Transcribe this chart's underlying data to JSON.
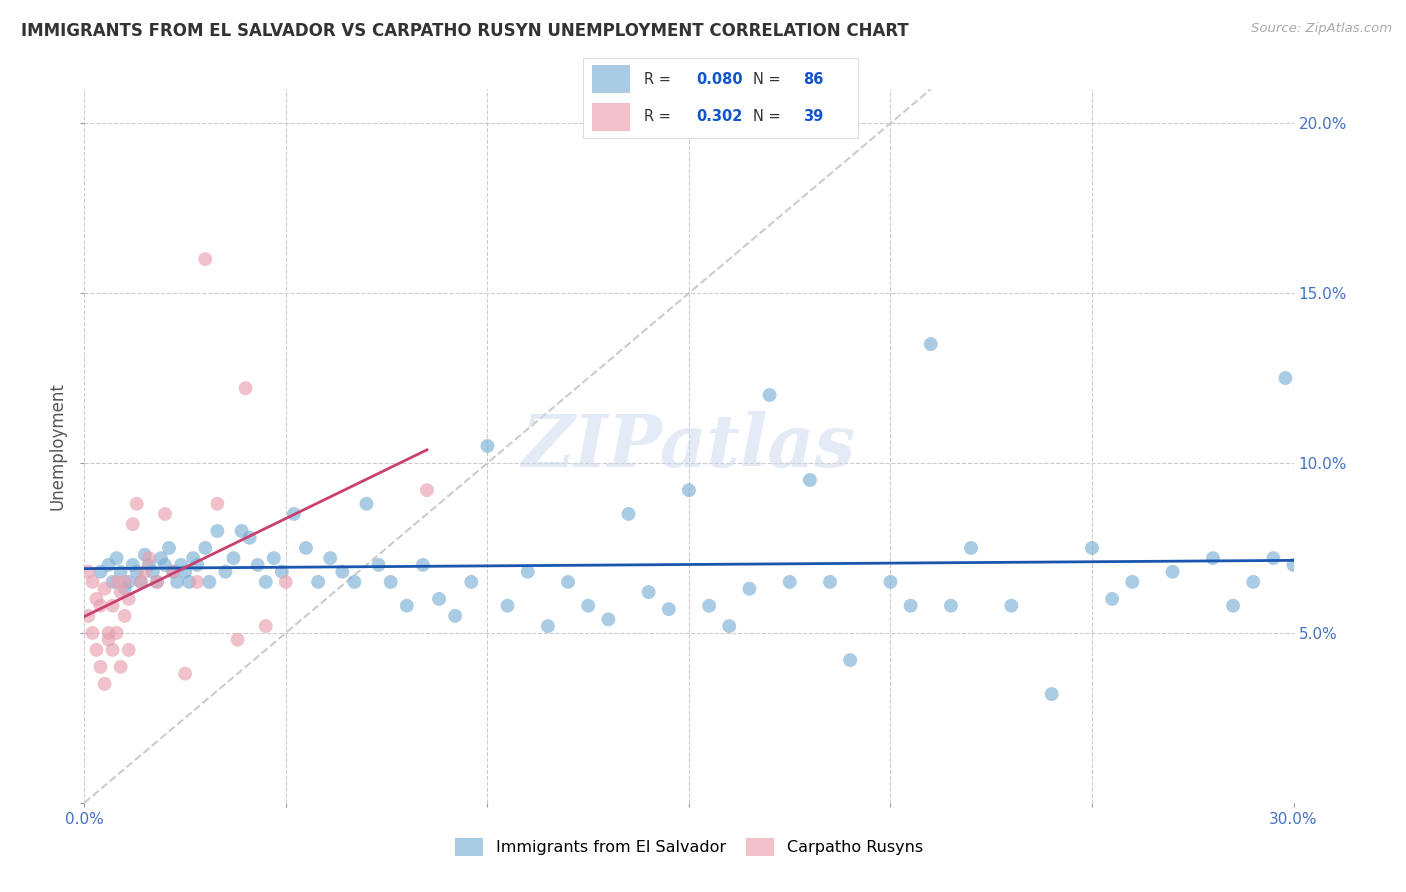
{
  "title": "IMMIGRANTS FROM EL SALVADOR VS CARPATHO RUSYN UNEMPLOYMENT CORRELATION CHART",
  "source": "Source: ZipAtlas.com",
  "ylabel": "Unemployment",
  "xlim": [
    0,
    0.3
  ],
  "ylim": [
    0,
    0.21
  ],
  "xticks": [
    0.0,
    0.05,
    0.1,
    0.15,
    0.2,
    0.25,
    0.3
  ],
  "xticklabels_sparse": [
    "0.0%",
    "",
    "",
    "",
    "",
    "",
    "30.0%"
  ],
  "yticks": [
    0.0,
    0.05,
    0.1,
    0.15,
    0.2
  ],
  "yticklabels_right": [
    "",
    "5.0%",
    "10.0%",
    "15.0%",
    "20.0%"
  ],
  "blue_color": "#7bafd4",
  "pink_color": "#e8a0b0",
  "blue_line_color": "#1a56b0",
  "pink_line_color": "#c94070",
  "legend_R_blue": "0.080",
  "legend_N_blue": "86",
  "legend_R_pink": "0.302",
  "legend_N_pink": "39",
  "watermark": "ZIPatlas",
  "background_color": "#ffffff",
  "grid_color": "#cccccc",
  "blue_x": [
    0.004,
    0.006,
    0.007,
    0.008,
    0.009,
    0.01,
    0.011,
    0.012,
    0.013,
    0.014,
    0.015,
    0.016,
    0.017,
    0.018,
    0.019,
    0.02,
    0.021,
    0.022,
    0.023,
    0.024,
    0.025,
    0.026,
    0.027,
    0.028,
    0.03,
    0.031,
    0.033,
    0.035,
    0.037,
    0.039,
    0.041,
    0.043,
    0.045,
    0.047,
    0.049,
    0.052,
    0.055,
    0.058,
    0.061,
    0.064,
    0.067,
    0.07,
    0.073,
    0.076,
    0.08,
    0.084,
    0.088,
    0.092,
    0.096,
    0.1,
    0.105,
    0.11,
    0.115,
    0.12,
    0.125,
    0.13,
    0.135,
    0.14,
    0.145,
    0.15,
    0.155,
    0.16,
    0.165,
    0.17,
    0.175,
    0.18,
    0.185,
    0.19,
    0.2,
    0.205,
    0.21,
    0.215,
    0.22,
    0.23,
    0.24,
    0.25,
    0.255,
    0.26,
    0.27,
    0.28,
    0.285,
    0.29,
    0.295,
    0.298,
    0.3,
    0.302
  ],
  "blue_y": [
    0.068,
    0.07,
    0.065,
    0.072,
    0.068,
    0.063,
    0.065,
    0.07,
    0.068,
    0.065,
    0.073,
    0.07,
    0.068,
    0.065,
    0.072,
    0.07,
    0.075,
    0.068,
    0.065,
    0.07,
    0.068,
    0.065,
    0.072,
    0.07,
    0.075,
    0.065,
    0.08,
    0.068,
    0.072,
    0.08,
    0.078,
    0.07,
    0.065,
    0.072,
    0.068,
    0.085,
    0.075,
    0.065,
    0.072,
    0.068,
    0.065,
    0.088,
    0.07,
    0.065,
    0.058,
    0.07,
    0.06,
    0.055,
    0.065,
    0.105,
    0.058,
    0.068,
    0.052,
    0.065,
    0.058,
    0.054,
    0.085,
    0.062,
    0.057,
    0.092,
    0.058,
    0.052,
    0.063,
    0.12,
    0.065,
    0.095,
    0.065,
    0.042,
    0.065,
    0.058,
    0.135,
    0.058,
    0.075,
    0.058,
    0.032,
    0.075,
    0.06,
    0.065,
    0.068,
    0.072,
    0.058,
    0.065,
    0.072,
    0.125,
    0.07,
    0.075
  ],
  "pink_x": [
    0.001,
    0.001,
    0.002,
    0.002,
    0.003,
    0.003,
    0.004,
    0.004,
    0.005,
    0.005,
    0.006,
    0.006,
    0.007,
    0.007,
    0.008,
    0.008,
    0.009,
    0.009,
    0.01,
    0.01,
    0.011,
    0.011,
    0.012,
    0.013,
    0.014,
    0.015,
    0.016,
    0.018,
    0.02,
    0.022,
    0.025,
    0.028,
    0.03,
    0.033,
    0.038,
    0.04,
    0.045,
    0.05,
    0.085
  ],
  "pink_y": [
    0.068,
    0.055,
    0.065,
    0.05,
    0.06,
    0.045,
    0.058,
    0.04,
    0.063,
    0.035,
    0.05,
    0.048,
    0.058,
    0.045,
    0.065,
    0.05,
    0.062,
    0.04,
    0.065,
    0.055,
    0.06,
    0.045,
    0.082,
    0.088,
    0.065,
    0.068,
    0.072,
    0.065,
    0.085,
    0.068,
    0.038,
    0.065,
    0.16,
    0.088,
    0.048,
    0.122,
    0.052,
    0.065,
    0.092
  ]
}
